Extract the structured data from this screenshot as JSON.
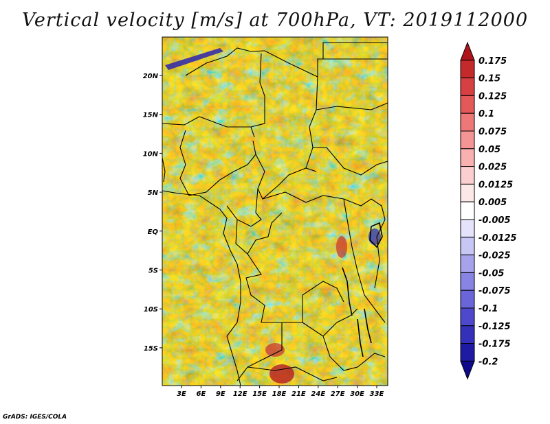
{
  "title": "Vertical velocity [m/s] at 700hPa, VT: 2019112000",
  "footer": "GrADS: IGES/COLA",
  "map": {
    "lat_labels": [
      "20N",
      "15N",
      "10N",
      "5N",
      "EQ",
      "5S",
      "10S",
      "15S"
    ],
    "lon_labels": [
      "3E",
      "6E",
      "9E",
      "12E",
      "15E",
      "18E",
      "21E",
      "24E",
      "27E",
      "30E",
      "33E"
    ]
  },
  "colorbar": {
    "levels": [
      "0.175",
      "0.15",
      "0.125",
      "0.1",
      "0.075",
      "0.05",
      "0.025",
      "0.0125",
      "0.005",
      "-0.005",
      "-0.0125",
      "-0.025",
      "-0.05",
      "-0.075",
      "-0.1",
      "-0.125",
      "-0.175",
      "-0.2"
    ],
    "colors": [
      "#b0141b",
      "#c42a2c",
      "#d64043",
      "#e4585a",
      "#ee7777",
      "#f49494",
      "#f8b0b0",
      "#fbcfcf",
      "#fde8e8",
      "#ffffff",
      "#e4e3fb",
      "#c8c6f4",
      "#a6a3ec",
      "#8784e3",
      "#6a66da",
      "#4d48cc",
      "#3430ba",
      "#1f1aa4",
      "#0f0a8c"
    ]
  }
}
